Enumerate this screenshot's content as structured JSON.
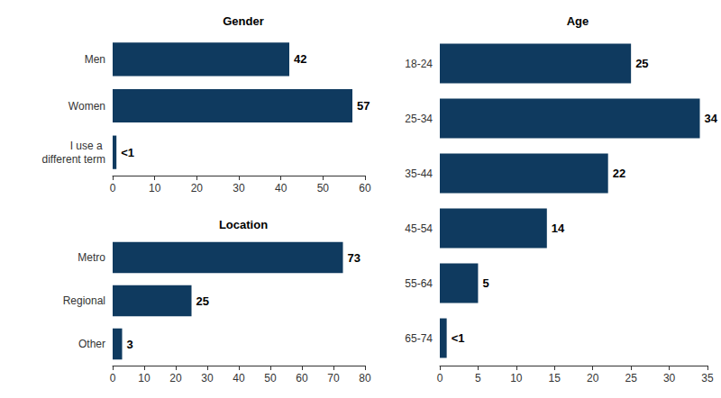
{
  "chart_data": [
    {
      "type": "bar",
      "title": "Gender",
      "orientation": "horizontal",
      "categories": [
        "Men",
        "Women",
        "I use a different term"
      ],
      "values": [
        42,
        57,
        0.9
      ],
      "value_labels": [
        "42",
        "57",
        "<1"
      ],
      "data_labels": true,
      "color": "#0f3a5f",
      "xlim": [
        0,
        60
      ],
      "xticks": [
        0,
        10,
        20,
        30,
        40,
        50,
        60
      ],
      "grid": false
    },
    {
      "type": "bar",
      "title": "Location",
      "orientation": "horizontal",
      "categories": [
        "Metro",
        "Regional",
        "Other"
      ],
      "values": [
        73,
        25,
        3
      ],
      "data_labels": true,
      "color": "#0f3a5f",
      "xlim": [
        0,
        80
      ],
      "xticks": [
        0,
        10,
        20,
        30,
        40,
        50,
        60,
        70,
        80
      ],
      "grid": false
    },
    {
      "type": "bar",
      "title": "Age",
      "orientation": "horizontal",
      "categories": [
        "18-24",
        "25-34",
        "35-44",
        "45-54",
        "55-64",
        "65-74"
      ],
      "values": [
        25,
        34,
        22,
        14,
        5,
        0.9
      ],
      "value_labels": [
        "25",
        "34",
        "22",
        "14",
        "5",
        "<1"
      ],
      "data_labels": true,
      "color": "#0f3a5f",
      "xlim": [
        0,
        35
      ],
      "xticks": [
        0,
        5,
        10,
        15,
        20,
        25,
        30,
        35
      ],
      "grid": false
    }
  ]
}
